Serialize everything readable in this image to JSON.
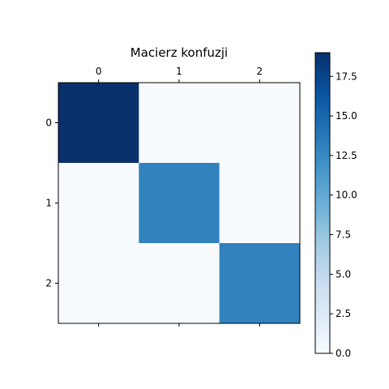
{
  "chart_data": {
    "type": "heatmap",
    "title": "Macierz konfuzji",
    "x_categories": [
      "0",
      "1",
      "2"
    ],
    "y_categories": [
      "0",
      "1",
      "2"
    ],
    "values": [
      [
        19,
        0,
        0
      ],
      [
        0,
        13,
        0
      ],
      [
        0,
        0,
        13
      ]
    ],
    "colorbar": {
      "min": 0,
      "max": 19,
      "ticks": [
        "0.0",
        "2.5",
        "5.0",
        "7.5",
        "10.0",
        "12.5",
        "15.0",
        "17.5"
      ]
    },
    "colormap": "Blues",
    "colors": [
      "#f7fbff",
      "#deebf7",
      "#c6dbef",
      "#9ecae1",
      "#6baed6",
      "#4292c6",
      "#2171b5",
      "#08519c",
      "#08306b"
    ],
    "x_axis_position": "top",
    "grid": false
  }
}
